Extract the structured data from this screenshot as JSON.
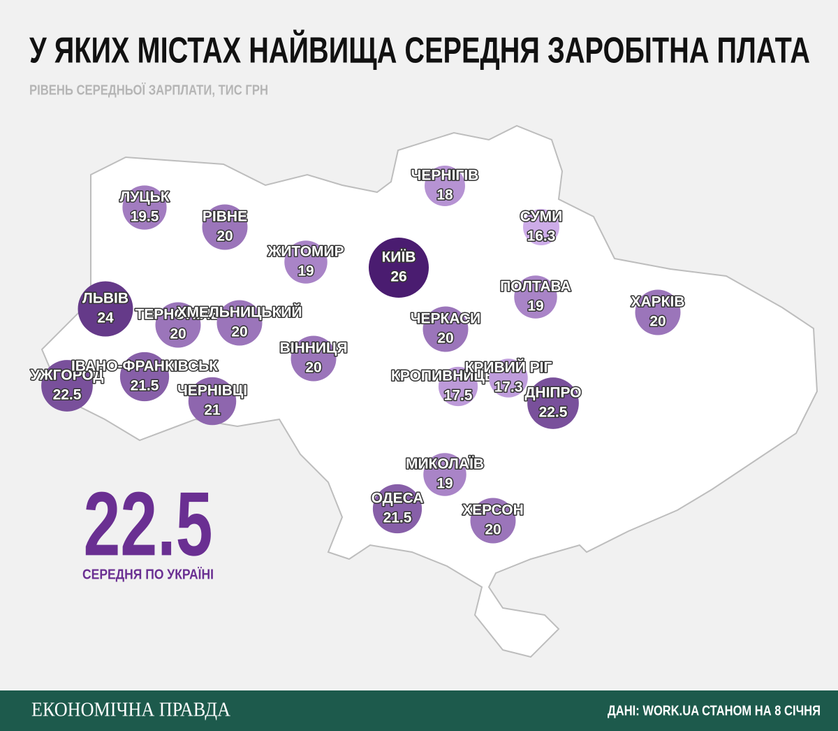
{
  "title": "У ЯКИХ МІСТАХ НАЙВИЩА СЕРЕДНЯ ЗАРОБІТНА ПЛАТА",
  "subtitle": "РІВЕНЬ СЕРЕДНЬОЇ ЗАРПЛАТИ, ТИС ГРН",
  "cities": [
    {
      "name": "ЛУЦЬК",
      "value": 19.5
    },
    {
      "name": "РІВНЕ",
      "value": 20
    },
    {
      "name": "ЖИТОМИР",
      "value": 19
    },
    {
      "name": "КИЇВ",
      "value": 26
    },
    {
      "name": "ЧЕРНІГІВ",
      "value": 18
    },
    {
      "name": "СУМИ",
      "value": 16.3
    },
    {
      "name": "ПОЛТАВА",
      "value": 19
    },
    {
      "name": "ХАРКІВ",
      "value": 20
    },
    {
      "name": "ЛЬВІВ",
      "value": 24
    },
    {
      "name": "ТЕРНОПІЛЬ",
      "value": 20
    },
    {
      "name": "ХМЕЛЬНИЦЬКИЙ",
      "value": 20
    },
    {
      "name": "ВІННИЦЯ",
      "value": 20
    },
    {
      "name": "ЧЕРКАСИ",
      "value": 20
    },
    {
      "name": "УЖГОРОД",
      "value": 22.5
    },
    {
      "name": "ІВАНО-ФРАНКІВСЬК",
      "value": 21.5
    },
    {
      "name": "ЧЕРНІВЦІ",
      "value": 21
    },
    {
      "name": "КРОПИВНИЦЬКИЙ",
      "value": 17.5
    },
    {
      "name": "КРИВИЙ РІГ",
      "value": 17.3
    },
    {
      "name": "ДНІПРО",
      "value": 22.5
    },
    {
      "name": "МИКОЛАЇВ",
      "value": 19
    },
    {
      "name": "ОДЕСА",
      "value": 21.5
    },
    {
      "name": "ХЕРСОН",
      "value": 20
    }
  ],
  "national_average": {
    "value": 22.5,
    "label": "СЕРЕДНЯ ПО УКРАЇНІ"
  },
  "footer": {
    "brand": "ЕКОНОМІЧНА ПРАВДА",
    "source": "ДАНІ: WORK.UA СТАНОМ НА 8 СІЧНЯ"
  }
}
